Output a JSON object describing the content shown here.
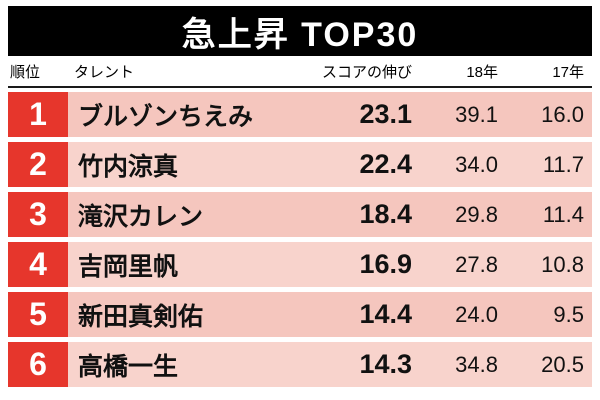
{
  "title": "急上昇 TOP30",
  "colors": {
    "accent_red": "#e6362c",
    "row_pink": "#f5c6be",
    "row_pink_alt": "#f8d3cc",
    "title_bg": "#000000"
  },
  "table": {
    "columns": {
      "rank": "順位",
      "name": "タレント",
      "score": "スコアの伸び",
      "y18": "18年",
      "y17": "17年"
    },
    "rows": [
      {
        "rank": "1",
        "name": "ブルゾンちえみ",
        "score": "23.1",
        "y18": "39.1",
        "y17": "16.0"
      },
      {
        "rank": "2",
        "name": "竹内涼真",
        "score": "22.4",
        "y18": "34.0",
        "y17": "11.7"
      },
      {
        "rank": "3",
        "name": "滝沢カレン",
        "score": "18.4",
        "y18": "29.8",
        "y17": "11.4"
      },
      {
        "rank": "4",
        "name": "吉岡里帆",
        "score": "16.9",
        "y18": "27.8",
        "y17": "10.8"
      },
      {
        "rank": "5",
        "name": "新田真剣佑",
        "score": "14.4",
        "y18": "24.0",
        "y17": "9.5"
      },
      {
        "rank": "6",
        "name": "高橋一生",
        "score": "14.3",
        "y18": "34.8",
        "y17": "20.5"
      }
    ]
  },
  "chart_data": {
    "type": "table",
    "title": "急上昇 TOP30",
    "columns": [
      "順位",
      "タレント",
      "スコアの伸び",
      "18年",
      "17年"
    ],
    "rows": [
      [
        "1",
        "ブルゾンちえみ",
        23.1,
        39.1,
        16.0
      ],
      [
        "2",
        "竹内涼真",
        22.4,
        34.0,
        11.7
      ],
      [
        "3",
        "滝沢カレン",
        18.4,
        29.8,
        11.4
      ],
      [
        "4",
        "吉岡里帆",
        16.9,
        27.8,
        10.8
      ],
      [
        "5",
        "新田真剣佑",
        14.4,
        24.0,
        9.5
      ],
      [
        "6",
        "高橋一生",
        14.3,
        34.8,
        20.5
      ]
    ]
  }
}
